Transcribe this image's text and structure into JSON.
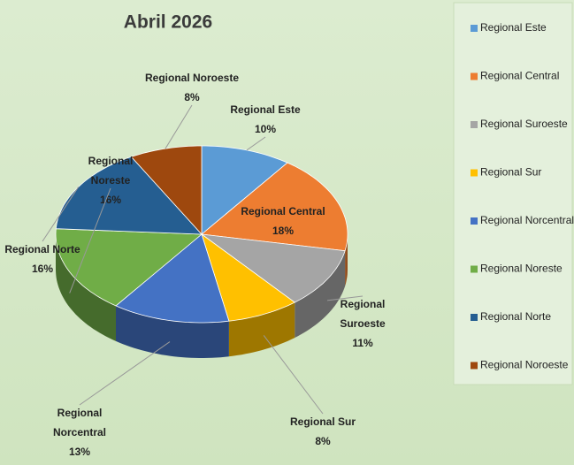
{
  "chart_data": {
    "type": "pie3d",
    "title": "Abril 2026",
    "categories": [
      "Regional  Este",
      "Regional Central",
      "Regional Suroeste",
      "Regional Sur",
      "Regional Norcentral",
      "Regional Noreste",
      "Regional Norte",
      "Regional Noroeste"
    ],
    "values": [
      10,
      18,
      11,
      8,
      13,
      16,
      16,
      8
    ],
    "value_labels": [
      "10%",
      "18%",
      "11%",
      "8%",
      "13%",
      "16%",
      "16%",
      "8%"
    ],
    "colors": [
      "#5b9bd5",
      "#ed7d31",
      "#a5a5a5",
      "#ffc000",
      "#4472c4",
      "#70ad47",
      "#255e91",
      "#9e480e"
    ],
    "legend": "right"
  }
}
